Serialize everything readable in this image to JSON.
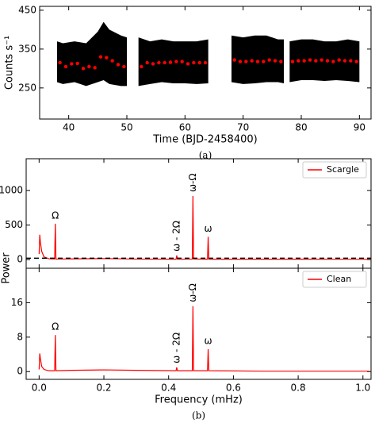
{
  "chart_data": [
    {
      "type": "scatter",
      "xlabel": "Time (BJD-2458400)",
      "ylabel": "Counts s⁻¹",
      "caption": "(a)",
      "xlim": [
        35,
        92
      ],
      "ylim": [
        170,
        460
      ],
      "xticks": [
        40,
        50,
        60,
        70,
        80,
        90
      ],
      "yticks": [
        250,
        350,
        450
      ],
      "band": {
        "color": "#000000",
        "x": [
          38,
          39,
          41,
          43,
          45,
          46,
          47,
          49,
          50,
          null,
          52,
          54,
          56,
          58,
          60,
          62,
          64,
          null,
          68,
          70,
          72,
          74,
          76,
          77,
          null,
          78,
          80,
          82,
          84,
          86,
          88,
          90
        ],
        "upper": [
          370,
          365,
          370,
          365,
          395,
          420,
          400,
          385,
          380,
          null,
          380,
          370,
          375,
          370,
          370,
          370,
          375,
          null,
          385,
          380,
          385,
          385,
          375,
          375,
          null,
          370,
          375,
          375,
          370,
          370,
          375,
          370
        ],
        "lower": [
          265,
          260,
          265,
          255,
          265,
          270,
          260,
          255,
          255,
          null,
          255,
          260,
          265,
          262,
          262,
          260,
          262,
          null,
          265,
          260,
          262,
          265,
          265,
          262,
          null,
          265,
          270,
          270,
          268,
          270,
          268,
          265
        ]
      },
      "series": [
        {
          "color": "#ff0000",
          "x": [
            38.5,
            39.5,
            40.5,
            41.5,
            42.5,
            43.5,
            44.5,
            45.5,
            46.5,
            47.5,
            48.5,
            49.5,
            52.5,
            53.5,
            54.5,
            55.5,
            56.5,
            57.5,
            58.5,
            59.5,
            60.5,
            61.5,
            62.5,
            63.5,
            68.5,
            69.5,
            70.5,
            71.5,
            72.5,
            73.5,
            74.5,
            75.5,
            76.5,
            78.5,
            79.5,
            80.5,
            81.5,
            82.5,
            83.5,
            84.5,
            85.5,
            86.5,
            87.5,
            88.5,
            89.5
          ],
          "values": [
            315,
            305,
            312,
            313,
            300,
            305,
            302,
            330,
            328,
            320,
            310,
            305,
            305,
            315,
            312,
            315,
            315,
            316,
            318,
            318,
            312,
            315,
            315,
            315,
            322,
            318,
            318,
            320,
            318,
            318,
            322,
            320,
            318,
            318,
            320,
            320,
            322,
            320,
            322,
            320,
            318,
            322,
            320,
            320,
            318
          ]
        }
      ]
    },
    {
      "type": "line",
      "ylabel": "Power",
      "xlim": [
        -0.04,
        1.025
      ],
      "ylim": [
        -125,
        1460
      ],
      "yticks": [
        0,
        500,
        1000
      ],
      "legend": "upper right",
      "threshold": 20,
      "series": [
        {
          "name": "Scargle",
          "color": "#ff0000",
          "x": [
            0,
            0.002,
            0.004,
            0.008,
            0.015,
            0.03,
            0.048,
            0.05,
            0.052,
            0.1,
            0.2,
            0.3,
            0.423,
            0.425,
            0.427,
            0.473,
            0.475,
            0.477,
            0.52,
            0.522,
            0.524,
            0.7,
            0.9,
            1.02
          ],
          "values": [
            80,
            360,
            250,
            120,
            40,
            12,
            8,
            520,
            8,
            10,
            15,
            8,
            6,
            60,
            6,
            8,
            920,
            8,
            6,
            330,
            6,
            6,
            5,
            5
          ]
        }
      ],
      "annotations": [
        {
          "text": "Ω",
          "x": 0.05
        },
        {
          "text": "ω - 2Ω",
          "x": 0.425
        },
        {
          "text": "ω-Ω",
          "x": 0.475
        },
        {
          "text": "ω",
          "x": 0.522
        }
      ]
    },
    {
      "type": "line",
      "xlabel": "Frequency (mHz)",
      "caption": "(b)",
      "xlim": [
        -0.04,
        1.025
      ],
      "ylim": [
        -1.8,
        24
      ],
      "xticks": [
        {
          "value": 0,
          "label": "0.0"
        },
        0.2,
        0.4,
        0.6,
        0.8,
        {
          "value": 1,
          "label": "1.0"
        }
      ],
      "yticks": [
        0,
        8,
        16
      ],
      "legend": "upper right",
      "series": [
        {
          "name": "Clean",
          "color": "#ff0000",
          "x": [
            0,
            0.002,
            0.004,
            0.008,
            0.015,
            0.03,
            0.048,
            0.05,
            0.052,
            0.1,
            0.2,
            0.3,
            0.423,
            0.425,
            0.427,
            0.473,
            0.475,
            0.477,
            0.52,
            0.522,
            0.524,
            0.7,
            0.9,
            1.02
          ],
          "values": [
            0.5,
            4.2,
            3,
            1.2,
            0.5,
            0.2,
            0.2,
            8.5,
            0.2,
            0.3,
            0.4,
            0.3,
            0.2,
            1.0,
            0.2,
            0.2,
            15.2,
            0.2,
            0.2,
            5.2,
            0.2,
            0.1,
            0.1,
            0.1
          ]
        }
      ],
      "annotations": [
        {
          "text": "Ω",
          "x": 0.05
        },
        {
          "text": "ω - 2Ω",
          "x": 0.425
        },
        {
          "text": "ω-Ω",
          "x": 0.475
        },
        {
          "text": "ω",
          "x": 0.522
        }
      ]
    }
  ]
}
